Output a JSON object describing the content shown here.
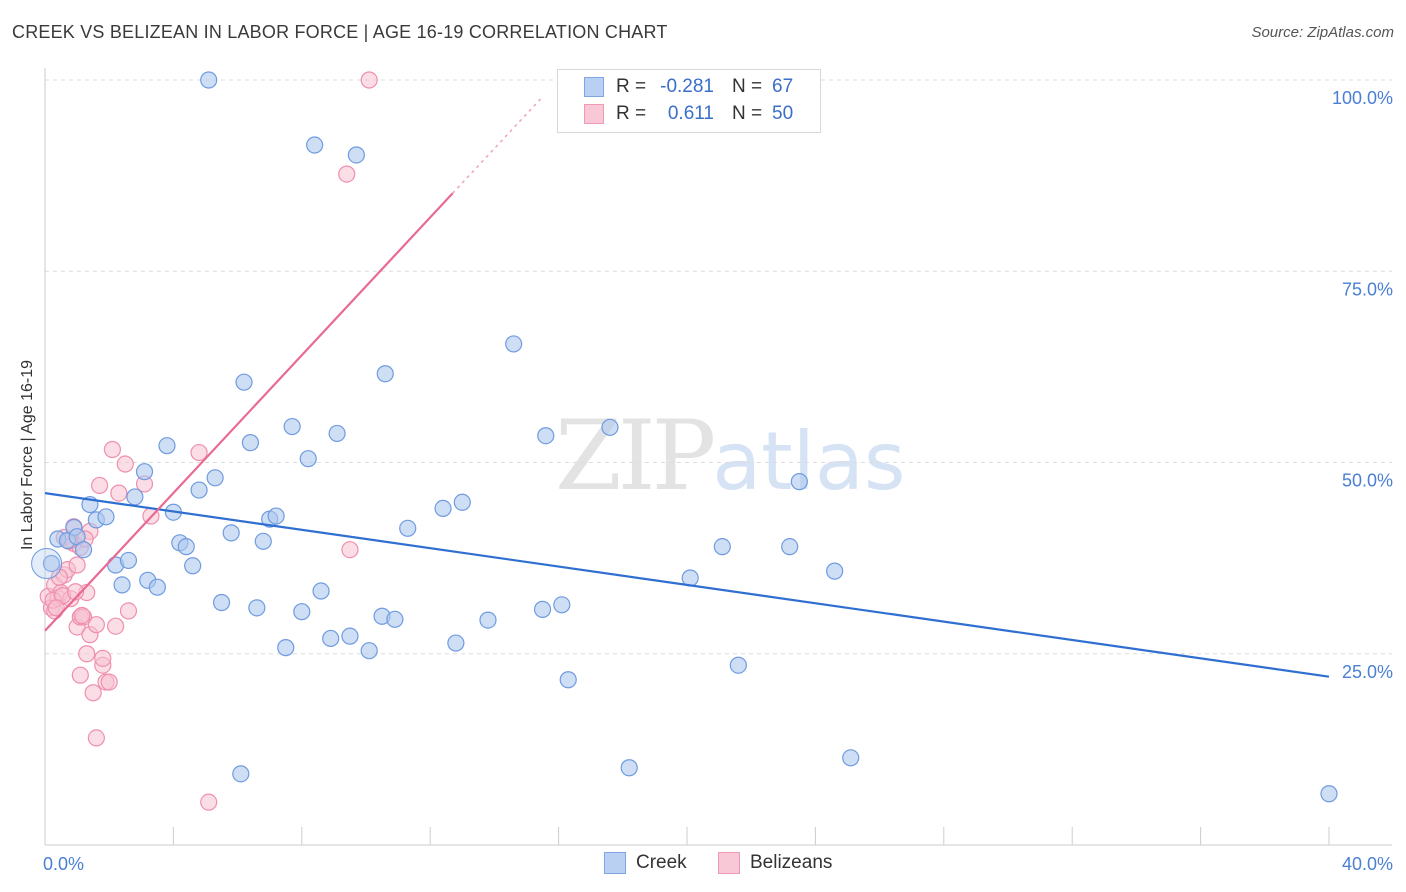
{
  "title": "CREEK VS BELIZEAN IN LABOR FORCE | AGE 16-19 CORRELATION CHART",
  "source": "Source: ZipAtlas.com",
  "watermark": {
    "zip": "ZIP",
    "atlas": "atlas"
  },
  "legend": {
    "creek": {
      "r_label": "R =",
      "r": "-0.281",
      "n_label": "N =",
      "n": "67"
    },
    "belizeans": {
      "r_label": "R =",
      "r": "0.611",
      "n_label": "N =",
      "n": "50"
    }
  },
  "colors": {
    "creek_fill": "#aec8ef",
    "creek_stroke": "#6f9be0",
    "creek_line": "#2f6fd1",
    "belizean_fill": "#f7c1d1",
    "belizean_stroke": "#ef8fae",
    "belizean_line": "#e86a93"
  },
  "chart_data": {
    "type": "scatter",
    "title": "CREEK VS BELIZEAN IN LABOR FORCE | AGE 16-19 CORRELATION CHART",
    "xlabel": "",
    "ylabel": "In Labor Force | Age 16-19",
    "xlim": [
      0,
      40
    ],
    "ylim": [
      0,
      100
    ],
    "x_tick_labels": [
      "0.0%",
      "40.0%"
    ],
    "y_ticks": [
      25,
      50,
      75,
      100
    ],
    "y_tick_labels": [
      "25.0%",
      "50.0%",
      "75.0%",
      "100.0%"
    ],
    "series": [
      {
        "name": "Creek",
        "trend": {
          "x0": 0,
          "y0": 46.0,
          "x1": 40,
          "y1": 22.0
        },
        "points": [
          [
            0.2,
            36.8
          ],
          [
            0.4,
            40.0
          ],
          [
            0.7,
            39.8
          ],
          [
            0.9,
            41.5
          ],
          [
            1.0,
            40.3
          ],
          [
            1.2,
            38.6
          ],
          [
            1.4,
            44.5
          ],
          [
            1.6,
            42.5
          ],
          [
            1.9,
            42.9
          ],
          [
            2.2,
            36.6
          ],
          [
            2.4,
            34.0
          ],
          [
            2.6,
            37.2
          ],
          [
            2.8,
            45.5
          ],
          [
            3.1,
            48.8
          ],
          [
            3.2,
            34.6
          ],
          [
            3.5,
            33.7
          ],
          [
            3.8,
            52.2
          ],
          [
            4.0,
            43.5
          ],
          [
            4.2,
            39.5
          ],
          [
            4.4,
            39.0
          ],
          [
            4.6,
            36.5
          ],
          [
            4.8,
            46.4
          ],
          [
            5.1,
            100.0
          ],
          [
            5.3,
            48.0
          ],
          [
            5.5,
            31.7
          ],
          [
            5.8,
            40.8
          ],
          [
            6.1,
            9.3
          ],
          [
            6.2,
            60.5
          ],
          [
            6.4,
            52.6
          ],
          [
            6.6,
            31.0
          ],
          [
            6.8,
            39.7
          ],
          [
            7.0,
            42.6
          ],
          [
            7.2,
            43.0
          ],
          [
            7.5,
            25.8
          ],
          [
            7.7,
            54.7
          ],
          [
            8.0,
            30.5
          ],
          [
            8.2,
            50.5
          ],
          [
            8.4,
            91.5
          ],
          [
            8.6,
            33.2
          ],
          [
            8.9,
            27.0
          ],
          [
            9.1,
            53.8
          ],
          [
            9.5,
            27.3
          ],
          [
            9.7,
            90.2
          ],
          [
            10.1,
            25.4
          ],
          [
            10.5,
            29.9
          ],
          [
            10.6,
            61.6
          ],
          [
            10.9,
            29.5
          ],
          [
            11.3,
            41.4
          ],
          [
            12.4,
            44.0
          ],
          [
            12.8,
            26.4
          ],
          [
            13.0,
            44.8
          ],
          [
            13.8,
            29.4
          ],
          [
            14.6,
            65.5
          ],
          [
            15.5,
            30.8
          ],
          [
            15.6,
            53.5
          ],
          [
            16.1,
            31.4
          ],
          [
            16.3,
            21.6
          ],
          [
            17.6,
            54.6
          ],
          [
            18.2,
            10.1
          ],
          [
            20.1,
            34.9
          ],
          [
            21.1,
            39.0
          ],
          [
            21.6,
            23.5
          ],
          [
            23.2,
            39.0
          ],
          [
            23.5,
            47.5
          ],
          [
            24.6,
            35.8
          ],
          [
            25.1,
            11.4
          ],
          [
            40.0,
            6.7
          ]
        ]
      },
      {
        "name": "Belizeans",
        "trend": {
          "x0": 0,
          "y0": 28.0,
          "x1": 15.5,
          "y1": 97.8
        },
        "points": [
          [
            0.1,
            32.5
          ],
          [
            0.2,
            31.0
          ],
          [
            0.3,
            34.0
          ],
          [
            0.3,
            30.6
          ],
          [
            0.4,
            32.3
          ],
          [
            0.5,
            33.0
          ],
          [
            0.6,
            35.3
          ],
          [
            0.6,
            40.2
          ],
          [
            0.7,
            36.0
          ],
          [
            0.8,
            32.2
          ],
          [
            0.9,
            39.4
          ],
          [
            0.9,
            41.6
          ],
          [
            1.0,
            28.5
          ],
          [
            1.0,
            36.6
          ],
          [
            1.1,
            29.8
          ],
          [
            1.1,
            22.2
          ],
          [
            1.1,
            38.9
          ],
          [
            1.2,
            29.8
          ],
          [
            1.3,
            25.0
          ],
          [
            1.3,
            33.0
          ],
          [
            1.4,
            41.0
          ],
          [
            1.4,
            27.5
          ],
          [
            1.5,
            19.9
          ],
          [
            1.6,
            28.8
          ],
          [
            1.6,
            14.0
          ],
          [
            1.7,
            47.0
          ],
          [
            1.8,
            23.5
          ],
          [
            1.8,
            24.4
          ],
          [
            1.9,
            21.3
          ],
          [
            2.0,
            21.3
          ],
          [
            2.1,
            51.7
          ],
          [
            2.2,
            28.6
          ],
          [
            2.3,
            46.0
          ],
          [
            2.5,
            49.8
          ],
          [
            2.6,
            30.6
          ],
          [
            3.1,
            47.2
          ],
          [
            3.3,
            43.0
          ],
          [
            4.8,
            51.3
          ],
          [
            5.1,
            5.6
          ],
          [
            9.4,
            87.7
          ],
          [
            9.5,
            38.6
          ],
          [
            10.1,
            100.0
          ],
          [
            0.25,
            32.0
          ],
          [
            0.45,
            35.0
          ],
          [
            0.55,
            32.6
          ],
          [
            0.75,
            39.7
          ],
          [
            0.95,
            33.1
          ],
          [
            1.15,
            30.0
          ],
          [
            1.25,
            40.0
          ],
          [
            0.35,
            31.0
          ]
        ]
      }
    ]
  }
}
